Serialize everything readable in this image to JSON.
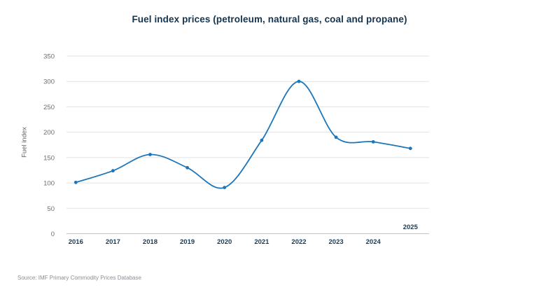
{
  "title": "Fuel index prices (petroleum, natural gas, coal and propane)",
  "source": "Source: IMF Primary Commodity Prices Database",
  "chart_data": {
    "type": "line",
    "title": "Fuel index prices (petroleum, natural gas, coal and propane)",
    "xlabel": "",
    "ylabel": "Fuel index",
    "x": [
      "2016",
      "2017",
      "2018",
      "2019",
      "2020",
      "2021",
      "2022",
      "2023",
      "2024",
      "2025"
    ],
    "series": [
      {
        "name": "Fuel index",
        "values": [
          101,
          124,
          156,
          130,
          91,
          184,
          300,
          190,
          181,
          168
        ]
      }
    ],
    "ylim": [
      0,
      350
    ],
    "yticks": [
      0,
      50,
      100,
      150,
      200,
      250,
      300,
      350
    ],
    "grid": true,
    "legend": "none",
    "curve": "smooth",
    "marker": "circle",
    "x_tick_sides": {
      "2025": "above"
    }
  },
  "colors": {
    "background": "#ffffff",
    "title": "#15344e",
    "x_tick_labels": "#1c3b55",
    "y_tick_labels": "#6e6e6e",
    "axis_title": "#5f6368",
    "gridline": "#e2e2e2",
    "axis_line": "#bfc5ca",
    "line": "#1c76ba",
    "source": "#8a8f94"
  }
}
